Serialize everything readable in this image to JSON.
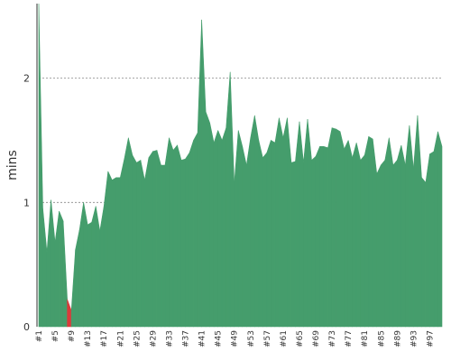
{
  "chart_data": {
    "type": "area",
    "title": "",
    "xlabel": "",
    "ylabel": "mins",
    "ylim": [
      0,
      2.6
    ],
    "yticks": [
      0,
      1,
      2
    ],
    "grid": "horizontal-dashed",
    "legend": "none",
    "colors": {
      "success": "#459d6c",
      "failure": "#d93b3b",
      "text": "#333333"
    },
    "categories": [
      "#1",
      "#2",
      "#3",
      "#4",
      "#5",
      "#6",
      "#7",
      "#8",
      "#9",
      "#10",
      "#11",
      "#12",
      "#13",
      "#14",
      "#15",
      "#16",
      "#17",
      "#18",
      "#19",
      "#20",
      "#21",
      "#22",
      "#23",
      "#24",
      "#25",
      "#26",
      "#27",
      "#28",
      "#29",
      "#30",
      "#31",
      "#32",
      "#33",
      "#34",
      "#35",
      "#36",
      "#37",
      "#38",
      "#39",
      "#40",
      "#41",
      "#42",
      "#43",
      "#44",
      "#45",
      "#46",
      "#47",
      "#48",
      "#49",
      "#50",
      "#51",
      "#52",
      "#53",
      "#54",
      "#55",
      "#56",
      "#57",
      "#58",
      "#59",
      "#60",
      "#61",
      "#62",
      "#63",
      "#64",
      "#65",
      "#66",
      "#67",
      "#68",
      "#69",
      "#70",
      "#71",
      "#72",
      "#73",
      "#74",
      "#75",
      "#76",
      "#77",
      "#78",
      "#79",
      "#80",
      "#81",
      "#82",
      "#83",
      "#84",
      "#85",
      "#86",
      "#87",
      "#88",
      "#89",
      "#90",
      "#91",
      "#92",
      "#93",
      "#94",
      "#95",
      "#96",
      "#97",
      "#98",
      "#99",
      "#100"
    ],
    "tick_labels": [
      "#1",
      "#5",
      "#9",
      "#13",
      "#17",
      "#21",
      "#25",
      "#29",
      "#33",
      "#37",
      "#41",
      "#45",
      "#49",
      "#53",
      "#57",
      "#61",
      "#65",
      "#69",
      "#73",
      "#77",
      "#81",
      "#85",
      "#89",
      "#93",
      "#97"
    ],
    "values": [
      2.6,
      0.95,
      0.6,
      1.02,
      0.68,
      0.93,
      0.85,
      0.22,
      0.13,
      0.62,
      0.78,
      1.0,
      0.82,
      0.84,
      0.97,
      0.77,
      0.97,
      1.25,
      1.18,
      1.2,
      1.2,
      1.35,
      1.52,
      1.38,
      1.32,
      1.34,
      1.18,
      1.36,
      1.41,
      1.42,
      1.3,
      1.3,
      1.52,
      1.42,
      1.46,
      1.34,
      1.35,
      1.4,
      1.5,
      1.56,
      2.47,
      1.73,
      1.64,
      1.48,
      1.58,
      1.5,
      1.6,
      2.05,
      1.15,
      1.58,
      1.45,
      1.3,
      1.52,
      1.7,
      1.5,
      1.36,
      1.4,
      1.5,
      1.48,
      1.68,
      1.52,
      1.68,
      1.32,
      1.33,
      1.65,
      1.32,
      1.67,
      1.34,
      1.37,
      1.45,
      1.45,
      1.44,
      1.6,
      1.59,
      1.57,
      1.43,
      1.5,
      1.36,
      1.48,
      1.34,
      1.38,
      1.53,
      1.51,
      1.23,
      1.3,
      1.34,
      1.52,
      1.3,
      1.34,
      1.46,
      1.3,
      1.62,
      1.27,
      1.7,
      1.2,
      1.16,
      1.39,
      1.41,
      1.57,
      1.45
    ],
    "status": [
      "success",
      "success",
      "success",
      "success",
      "success",
      "success",
      "success",
      "failure",
      "failure",
      "success",
      "success",
      "success",
      "success",
      "success",
      "success",
      "success",
      "success",
      "success",
      "success",
      "success",
      "success",
      "success",
      "success",
      "success",
      "success",
      "success",
      "success",
      "success",
      "success",
      "success",
      "success",
      "success",
      "success",
      "success",
      "success",
      "success",
      "success",
      "success",
      "success",
      "success",
      "success",
      "success",
      "success",
      "success",
      "success",
      "success",
      "success",
      "success",
      "success",
      "success",
      "success",
      "success",
      "success",
      "success",
      "success",
      "success",
      "success",
      "success",
      "success",
      "success",
      "success",
      "success",
      "success",
      "success",
      "success",
      "success",
      "success",
      "success",
      "success",
      "success",
      "success",
      "success",
      "success",
      "success",
      "success",
      "success",
      "success",
      "success",
      "success",
      "success",
      "success",
      "success",
      "success",
      "success",
      "success",
      "success",
      "success",
      "success",
      "success",
      "success",
      "success",
      "success",
      "success",
      "success",
      "success",
      "success",
      "success",
      "success",
      "success",
      "success"
    ]
  }
}
